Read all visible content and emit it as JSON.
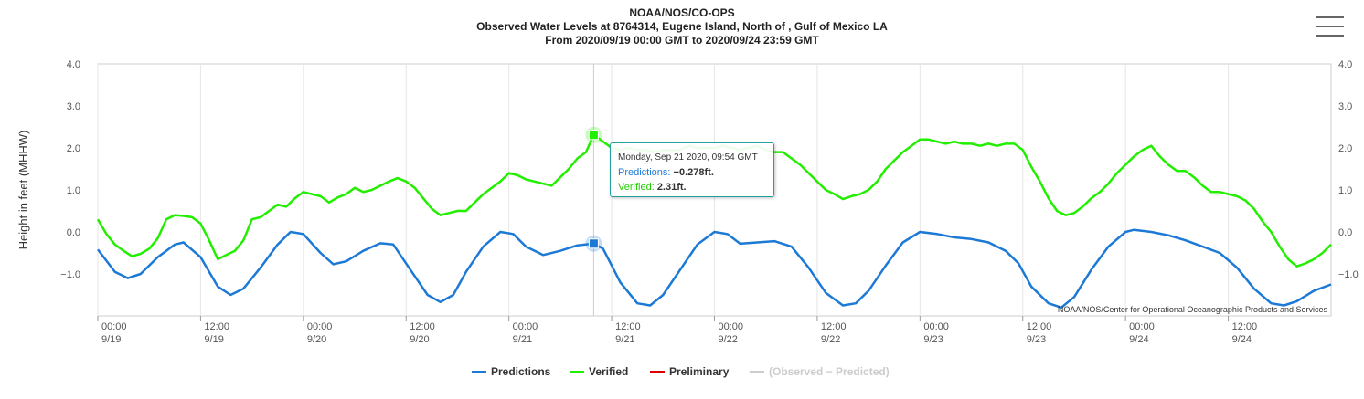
{
  "header": {
    "line1": "NOAA/NOS/CO-OPS",
    "line2": "Observed Water Levels at 8764314, Eugene Island, North of , Gulf of Mexico LA",
    "line3": "From 2020/09/19 00:00 GMT to 2020/09/24 23:59 GMT"
  },
  "credit": "NOAA/NOS/Center for Operational Oceanographic Products and Services",
  "menu_icon": "hamburger-menu-icon",
  "tooltip": {
    "date": "Monday, Sep 21 2020, 09:54 GMT",
    "predictions_label": "Predictions:",
    "predictions_value": "−0.278ft.",
    "verified_label": "Verified:",
    "verified_value": "2.31ft."
  },
  "legend": [
    {
      "name": "Predictions",
      "color": "#1c7ad6",
      "active": true
    },
    {
      "name": "Verified",
      "color": "#22ee00",
      "active": true
    },
    {
      "name": "Preliminary",
      "color": "#dd0000",
      "active": true
    },
    {
      "name": "(Observed − Predicted)",
      "color": "#cccccc",
      "active": false
    }
  ],
  "chart_data": {
    "type": "line",
    "ylabel": "Height in feet (MHHW)",
    "ylim": [
      -2.0,
      4.0
    ],
    "ytick_labels": [
      "4.0",
      "3.0",
      "2.0",
      "1.0",
      "0.0",
      "−1.0"
    ],
    "ytick_values": [
      4,
      3,
      2,
      1,
      0,
      -1
    ],
    "xlim_hours": [
      0,
      144
    ],
    "xticks": [
      {
        "hour": 0,
        "time": "00:00",
        "date": "9/19"
      },
      {
        "hour": 12,
        "time": "12:00",
        "date": "9/19"
      },
      {
        "hour": 24,
        "time": "00:00",
        "date": "9/20"
      },
      {
        "hour": 36,
        "time": "12:00",
        "date": "9/20"
      },
      {
        "hour": 48,
        "time": "00:00",
        "date": "9/21"
      },
      {
        "hour": 60,
        "time": "12:00",
        "date": "9/21"
      },
      {
        "hour": 72,
        "time": "00:00",
        "date": "9/22"
      },
      {
        "hour": 84,
        "time": "12:00",
        "date": "9/22"
      },
      {
        "hour": 96,
        "time": "00:00",
        "date": "9/23"
      },
      {
        "hour": 108,
        "time": "12:00",
        "date": "9/23"
      },
      {
        "hour": 120,
        "time": "00:00",
        "date": "9/24"
      },
      {
        "hour": 132,
        "time": "12:00",
        "date": "9/24"
      }
    ],
    "grid": "vertical",
    "legend_position": "bottom-center",
    "crosshair_hour": 57.9,
    "series": [
      {
        "name": "Predictions",
        "color": "#1c7ad6",
        "points": [
          [
            0,
            -0.42
          ],
          [
            2,
            -0.95
          ],
          [
            3.5,
            -1.1
          ],
          [
            5,
            -1.0
          ],
          [
            7,
            -0.6
          ],
          [
            9,
            -0.3
          ],
          [
            10,
            -0.25
          ],
          [
            12,
            -0.6
          ],
          [
            14,
            -1.3
          ],
          [
            15.5,
            -1.5
          ],
          [
            17,
            -1.35
          ],
          [
            19,
            -0.85
          ],
          [
            21,
            -0.3
          ],
          [
            22.5,
            0.0
          ],
          [
            24,
            -0.05
          ],
          [
            26,
            -0.5
          ],
          [
            27.5,
            -0.77
          ],
          [
            29,
            -0.7
          ],
          [
            31,
            -0.45
          ],
          [
            33,
            -0.27
          ],
          [
            34.5,
            -0.3
          ],
          [
            36.5,
            -0.9
          ],
          [
            38.5,
            -1.5
          ],
          [
            40,
            -1.67
          ],
          [
            41.5,
            -1.5
          ],
          [
            43,
            -0.95
          ],
          [
            45,
            -0.35
          ],
          [
            47,
            0.0
          ],
          [
            48.5,
            -0.05
          ],
          [
            50,
            -0.35
          ],
          [
            52,
            -0.55
          ],
          [
            54,
            -0.45
          ],
          [
            56,
            -0.32
          ],
          [
            57.9,
            -0.278
          ],
          [
            59,
            -0.4
          ],
          [
            61,
            -1.2
          ],
          [
            63,
            -1.7
          ],
          [
            64.5,
            -1.75
          ],
          [
            66,
            -1.5
          ],
          [
            68,
            -0.9
          ],
          [
            70,
            -0.3
          ],
          [
            72,
            0.0
          ],
          [
            73.5,
            -0.05
          ],
          [
            75,
            -0.28
          ],
          [
            77,
            -0.25
          ],
          [
            79,
            -0.22
          ],
          [
            81,
            -0.35
          ],
          [
            83,
            -0.85
          ],
          [
            85,
            -1.45
          ],
          [
            87,
            -1.75
          ],
          [
            88.5,
            -1.7
          ],
          [
            90,
            -1.4
          ],
          [
            92,
            -0.8
          ],
          [
            94,
            -0.25
          ],
          [
            96,
            0.0
          ],
          [
            98,
            -0.05
          ],
          [
            100,
            -0.13
          ],
          [
            102,
            -0.17
          ],
          [
            104,
            -0.25
          ],
          [
            106,
            -0.45
          ],
          [
            107.5,
            -0.75
          ],
          [
            109,
            -1.3
          ],
          [
            111,
            -1.7
          ],
          [
            112.5,
            -1.8
          ],
          [
            114,
            -1.55
          ],
          [
            116,
            -0.9
          ],
          [
            118,
            -0.35
          ],
          [
            120,
            0.0
          ],
          [
            121,
            0.05
          ],
          [
            123,
            0.0
          ],
          [
            125,
            -0.08
          ],
          [
            127,
            -0.2
          ],
          [
            129,
            -0.35
          ],
          [
            131,
            -0.5
          ],
          [
            133,
            -0.85
          ],
          [
            135,
            -1.35
          ],
          [
            137,
            -1.7
          ],
          [
            138.5,
            -1.75
          ],
          [
            140,
            -1.65
          ],
          [
            142,
            -1.4
          ],
          [
            144,
            -1.25
          ]
        ]
      },
      {
        "name": "Verified",
        "color": "#22ee00",
        "points": [
          [
            0,
            0.3
          ],
          [
            1,
            -0.05
          ],
          [
            2,
            -0.3
          ],
          [
            3,
            -0.45
          ],
          [
            4,
            -0.58
          ],
          [
            5,
            -0.52
          ],
          [
            6,
            -0.4
          ],
          [
            7,
            -0.15
          ],
          [
            8,
            0.3
          ],
          [
            9,
            0.4
          ],
          [
            10,
            0.38
          ],
          [
            11,
            0.35
          ],
          [
            12,
            0.2
          ],
          [
            13,
            -0.2
          ],
          [
            14,
            -0.65
          ],
          [
            15,
            -0.55
          ],
          [
            16,
            -0.45
          ],
          [
            17,
            -0.2
          ],
          [
            18,
            0.3
          ],
          [
            19,
            0.35
          ],
          [
            20,
            0.5
          ],
          [
            21,
            0.65
          ],
          [
            22,
            0.6
          ],
          [
            23,
            0.8
          ],
          [
            24,
            0.95
          ],
          [
            25,
            0.9
          ],
          [
            26,
            0.85
          ],
          [
            27,
            0.7
          ],
          [
            28,
            0.82
          ],
          [
            29,
            0.9
          ],
          [
            30,
            1.05
          ],
          [
            31,
            0.95
          ],
          [
            32,
            1.0
          ],
          [
            33,
            1.1
          ],
          [
            34,
            1.2
          ],
          [
            35,
            1.28
          ],
          [
            36,
            1.2
          ],
          [
            37,
            1.05
          ],
          [
            38,
            0.8
          ],
          [
            39,
            0.55
          ],
          [
            40,
            0.4
          ],
          [
            41,
            0.45
          ],
          [
            42,
            0.5
          ],
          [
            43,
            0.5
          ],
          [
            44,
            0.7
          ],
          [
            45,
            0.9
          ],
          [
            46,
            1.05
          ],
          [
            47,
            1.2
          ],
          [
            48,
            1.4
          ],
          [
            49,
            1.35
          ],
          [
            50,
            1.25
          ],
          [
            51,
            1.2
          ],
          [
            52,
            1.15
          ],
          [
            53,
            1.1
          ],
          [
            54,
            1.3
          ],
          [
            55,
            1.5
          ],
          [
            56,
            1.75
          ],
          [
            57,
            1.9
          ],
          [
            57.9,
            2.31
          ],
          [
            59,
            2.15
          ],
          [
            60,
            2.0
          ],
          [
            61,
            1.95
          ],
          [
            62,
            2.0
          ],
          [
            63,
            1.95
          ],
          [
            64,
            1.95
          ],
          [
            65,
            1.9
          ],
          [
            66,
            1.95
          ],
          [
            67,
            1.95
          ],
          [
            68,
            1.95
          ],
          [
            69,
            2.05
          ],
          [
            70,
            2.0
          ],
          [
            71,
            2.0
          ],
          [
            72,
            2.0
          ],
          [
            73,
            2.05
          ],
          [
            74,
            2.0
          ],
          [
            75,
            1.95
          ],
          [
            76,
            2.0
          ],
          [
            77,
            2.05
          ],
          [
            78,
            1.95
          ],
          [
            79,
            1.9
          ],
          [
            80,
            1.9
          ],
          [
            81,
            1.75
          ],
          [
            82,
            1.6
          ],
          [
            83,
            1.4
          ],
          [
            84,
            1.2
          ],
          [
            85,
            1.0
          ],
          [
            86,
            0.9
          ],
          [
            87,
            0.78
          ],
          [
            88,
            0.85
          ],
          [
            89,
            0.9
          ],
          [
            90,
            1.0
          ],
          [
            91,
            1.2
          ],
          [
            92,
            1.5
          ],
          [
            93,
            1.7
          ],
          [
            94,
            1.9
          ],
          [
            95,
            2.05
          ],
          [
            96,
            2.2
          ],
          [
            97,
            2.2
          ],
          [
            98,
            2.15
          ],
          [
            99,
            2.1
          ],
          [
            100,
            2.15
          ],
          [
            101,
            2.1
          ],
          [
            102,
            2.1
          ],
          [
            103,
            2.05
          ],
          [
            104,
            2.1
          ],
          [
            105,
            2.05
          ],
          [
            106,
            2.1
          ],
          [
            107,
            2.1
          ],
          [
            108,
            1.95
          ],
          [
            109,
            1.55
          ],
          [
            110,
            1.2
          ],
          [
            111,
            0.8
          ],
          [
            112,
            0.5
          ],
          [
            113,
            0.4
          ],
          [
            114,
            0.45
          ],
          [
            115,
            0.6
          ],
          [
            116,
            0.8
          ],
          [
            117,
            0.95
          ],
          [
            118,
            1.15
          ],
          [
            119,
            1.4
          ],
          [
            120,
            1.6
          ],
          [
            121,
            1.8
          ],
          [
            122,
            1.95
          ],
          [
            123,
            2.05
          ],
          [
            124,
            1.8
          ],
          [
            125,
            1.6
          ],
          [
            126,
            1.45
          ],
          [
            127,
            1.45
          ],
          [
            128,
            1.3
          ],
          [
            129,
            1.1
          ],
          [
            130,
            0.95
          ],
          [
            131,
            0.95
          ],
          [
            132,
            0.9
          ],
          [
            133,
            0.85
          ],
          [
            134,
            0.75
          ],
          [
            135,
            0.55
          ],
          [
            136,
            0.25
          ],
          [
            137,
            0.0
          ],
          [
            138,
            -0.35
          ],
          [
            139,
            -0.65
          ],
          [
            140,
            -0.82
          ],
          [
            141,
            -0.75
          ],
          [
            142,
            -0.65
          ],
          [
            143,
            -0.5
          ],
          [
            144,
            -0.3
          ]
        ]
      }
    ]
  }
}
